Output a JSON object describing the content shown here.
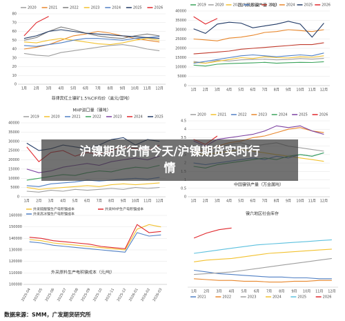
{
  "banner": "沪镍期货行情今天/沪镍期货实时行情",
  "source": "数据来源：SMM，广发期货研究所",
  "chart_data": [
    {
      "type": "line",
      "title": "菲律宾红土镍矿1.5%CIF均价（美元/湿吨）",
      "legend": "top",
      "categories": [
        "1月",
        "2月",
        "3月",
        "4月",
        "5月",
        "6月",
        "7月",
        "8月",
        "9月",
        "10月",
        "11月",
        "12月"
      ],
      "ylim": [
        0,
        80
      ],
      "yticks": [
        0,
        10,
        20,
        30,
        40,
        50,
        60,
        70,
        80
      ],
      "series": [
        {
          "name": "2020",
          "color": "#9e9e9e",
          "values": [
            35,
            33,
            32,
            36,
            38,
            40,
            42,
            44,
            45,
            43,
            40,
            38
          ]
        },
        {
          "name": "2021",
          "color": "#e8862a",
          "values": [
            40,
            42,
            45,
            50,
            55,
            57,
            60,
            58,
            55,
            52,
            50,
            48
          ]
        },
        {
          "name": "2022",
          "color": "#7a7a7a",
          "values": [
            50,
            53,
            60,
            65,
            62,
            58,
            55,
            53,
            52,
            55,
            57,
            55
          ]
        },
        {
          "name": "2023",
          "color": "#f2c12e",
          "values": [
            48,
            47,
            50,
            52,
            50,
            48,
            46,
            45,
            47,
            50,
            52,
            50
          ]
        },
        {
          "name": "2024",
          "color": "#4f7fc4",
          "values": [
            44,
            43,
            45,
            47,
            50,
            52,
            52,
            51,
            50,
            52,
            53,
            54
          ]
        },
        {
          "name": "2025",
          "color": "#1f3864",
          "values": [
            52,
            55,
            60,
            62,
            60,
            58,
            57,
            56,
            55,
            54,
            53,
            52
          ]
        },
        {
          "name": "2026",
          "color": "#e0262b",
          "values": [
            55,
            70,
            77,
            null,
            null,
            null,
            null,
            null,
            null,
            null,
            null,
            null
          ]
        }
      ]
    },
    {
      "type": "line",
      "title": "国内精炼镍产量（吨）",
      "legend": "top",
      "categories": [
        "1月",
        "2月",
        "3月",
        "4月",
        "5月",
        "6月",
        "7月",
        "8月",
        "9月",
        "10月",
        "11月",
        "12月"
      ],
      "ylim": [
        0,
        40000
      ],
      "yticks": [
        0,
        5000,
        10000,
        15000,
        20000,
        25000,
        30000,
        35000,
        40000
      ],
      "series": [
        {
          "name": "2019",
          "color": "#3aa35a",
          "values": [
            11000,
            10500,
            11500,
            11800,
            12000,
            12200,
            12500,
            12000,
            12300,
            12500,
            12400,
            12800
          ]
        },
        {
          "name": "2020",
          "color": "#9e9e9e",
          "values": [
            13000,
            12000,
            13500,
            13200,
            13800,
            14000,
            14200,
            13800,
            14000,
            14500,
            14200,
            14600
          ]
        },
        {
          "name": "2021",
          "color": "#f2c12e",
          "values": [
            12500,
            12000,
            13000,
            14000,
            15000,
            14500,
            15500,
            15000,
            14800,
            15500,
            15200,
            16000
          ]
        },
        {
          "name": "2022",
          "color": "#4f7fc4",
          "values": [
            12000,
            13000,
            14000,
            15000,
            16000,
            16500,
            16000,
            15500,
            16000,
            16500,
            16000,
            17500
          ]
        },
        {
          "name": "2023",
          "color": "#c0392b",
          "values": [
            17000,
            17500,
            18000,
            18500,
            19500,
            20000,
            20500,
            21000,
            21500,
            22000,
            22000,
            23000
          ]
        },
        {
          "name": "2024",
          "color": "#e8862a",
          "values": [
            25000,
            24500,
            24000,
            25500,
            26000,
            27000,
            28500,
            29000,
            30000,
            29500,
            29000,
            30000
          ]
        },
        {
          "name": "2025",
          "color": "#1f3864",
          "values": [
            30500,
            28000,
            33000,
            34000,
            33500,
            31000,
            32000,
            33000,
            34500,
            33000,
            26000,
            33500
          ]
        },
        {
          "name": "2026",
          "color": "#e0262b",
          "values": [
            37000,
            33000,
            36000,
            null,
            null,
            null,
            null,
            null,
            null,
            null,
            null,
            null
          ]
        }
      ]
    },
    {
      "type": "line",
      "title": "MHP进口量（镍吨）",
      "legend": "top",
      "categories": [
        "1月",
        "2月",
        "3月",
        "4月",
        "5月",
        "6月",
        "7月",
        "8月",
        "9月",
        "10月",
        "11月",
        "12月"
      ],
      "ylim": [
        0,
        40000
      ],
      "yticks": [
        0,
        5000,
        10000,
        15000,
        20000,
        25000,
        30000,
        35000,
        40000
      ],
      "series": [
        {
          "name": "2019",
          "color": "#9e9e9e",
          "values": [
            3000,
            2500,
            3500,
            3000,
            4000,
            3500,
            4000,
            4500,
            4000,
            5000,
            4500,
            5000
          ]
        },
        {
          "name": "2020",
          "color": "#f2c12e",
          "values": [
            5000,
            4000,
            4500,
            5000,
            5500,
            6000,
            5500,
            6500,
            7000,
            6500,
            7000,
            7500
          ]
        },
        {
          "name": "2021",
          "color": "#4f7fc4",
          "values": [
            6000,
            5500,
            7000,
            7500,
            8000,
            9000,
            8500,
            9000,
            9500,
            10000,
            9500,
            10500
          ]
        },
        {
          "name": "2022",
          "color": "#3aa35a",
          "values": [
            9000,
            10000,
            11000,
            12000,
            11500,
            13000,
            14000,
            13500,
            15000,
            16000,
            15500,
            17000
          ]
        },
        {
          "name": "2023",
          "color": "#7b3fa0",
          "values": [
            15000,
            13000,
            14000,
            16000,
            17000,
            18000,
            17000,
            19000,
            20000,
            21000,
            20000,
            22000
          ]
        },
        {
          "name": "2024",
          "color": "#e0262b",
          "values": [
            27000,
            19000,
            24000,
            25000,
            22000,
            24000,
            23000,
            25000,
            27000,
            26000,
            25000,
            28000
          ]
        },
        {
          "name": "2025",
          "color": "#1f3864",
          "values": [
            29000,
            25000,
            26000,
            28000,
            27000,
            26000,
            28000,
            31000,
            32000,
            28000,
            31000,
            30000
          ]
        }
      ]
    },
    {
      "type": "line",
      "title": "中国镍铁产量（万金属吨）",
      "legend": "top",
      "categories": [
        "1月",
        "2月",
        "3月",
        "4月",
        "5月",
        "6月",
        "7月",
        "8月",
        "9月",
        "10月",
        "11月",
        "12月"
      ],
      "ylim": [
        0,
        4.5
      ],
      "yticks": [
        0,
        0.5,
        1,
        1.5,
        2,
        2.5,
        3,
        3.5,
        4,
        4.5
      ],
      "series": [
        {
          "name": "2020",
          "color": "#9e9e9e",
          "values": [
            3.0,
            2.8,
            2.9,
            3.1,
            3.2,
            3.0,
            3.1,
            3.2,
            3.0,
            2.9,
            2.8,
            2.7
          ]
        },
        {
          "name": "2021",
          "color": "#f2c12e",
          "values": [
            2.6,
            2.5,
            2.6,
            2.7,
            2.8,
            2.7,
            2.6,
            2.5,
            2.4,
            2.3,
            2.2,
            2.1
          ]
        },
        {
          "name": "2022",
          "color": "#4f7fc4",
          "values": [
            2.0,
            1.9,
            2.0,
            2.1,
            2.2,
            2.3,
            2.2,
            2.4,
            2.3,
            2.5,
            2.4,
            2.6
          ]
        },
        {
          "name": "2023",
          "color": "#e8862a",
          "values": [
            2.8,
            2.7,
            3.0,
            3.2,
            3.3,
            3.5,
            3.6,
            3.8,
            4.0,
            4.1,
            3.9,
            3.8
          ]
        },
        {
          "name": "2024",
          "color": "#3aa35a",
          "values": [
            1.8,
            1.7,
            1.9,
            2.0,
            2.1,
            2.2,
            2.3,
            2.2,
            2.4,
            2.5,
            2.4,
            2.6
          ]
        },
        {
          "name": "2025",
          "color": "#7b3fa0",
          "values": [
            3.3,
            3.0,
            3.4,
            3.5,
            3.6,
            3.7,
            3.9,
            4.2,
            4.1,
            4.2,
            3.9,
            3.7
          ]
        },
        {
          "name": "2026",
          "color": "#e0262b",
          "values": [
            3.4,
            3.1,
            3.6,
            null,
            null,
            null,
            null,
            null,
            null,
            null,
            null,
            null
          ]
        }
      ]
    },
    {
      "type": "line",
      "title": "外采原料生产电积镍成本（元/吨）",
      "legend": "top",
      "categories": [
        "2025-04",
        "2025-05",
        "2025-06",
        "2025-07",
        "2025-08",
        "2025-09",
        "2025-10",
        "2025-11",
        "2025-12",
        "2026-01",
        "2026-02",
        "2026-03"
      ],
      "ylim": [
        100000,
        160000
      ],
      "yticks": [
        100000,
        110000,
        120000,
        130000,
        140000,
        150000,
        160000
      ],
      "series": [
        {
          "name": "外采硫酸镍生产电积镍成本",
          "color": "#f2c12e",
          "values": [
            139000,
            138000,
            136000,
            135000,
            134000,
            133000,
            132000,
            131000,
            130000,
            148000,
            152000,
            150000
          ]
        },
        {
          "name": "外采MHP生产电积镍成本",
          "color": "#e0262b",
          "values": [
            141000,
            140000,
            138000,
            137000,
            136000,
            135000,
            133000,
            132000,
            131000,
            152000,
            145000,
            146000
          ]
        },
        {
          "name": "外采高冰镍生产电积镍成本",
          "color": "#4f7fc4",
          "values": [
            137000,
            136000,
            134000,
            133000,
            132000,
            131000,
            130000,
            129000,
            128000,
            145000,
            142000,
            143000
          ]
        }
      ]
    },
    {
      "type": "line",
      "title": "镍六地区社会库存",
      "legend": "bottom",
      "categories": [
        "1月",
        "2月",
        "3月",
        "4月",
        "5月",
        "6月",
        "7月",
        "8月",
        "9月",
        "10月",
        "11月",
        "12月"
      ],
      "ylim": [
        0,
        80
      ],
      "series": [
        {
          "name": "2021",
          "color": "#4f7fc4",
          "values": [
            20,
            18,
            16,
            15,
            14,
            13,
            12,
            12,
            11,
            11,
            10,
            10
          ]
        },
        {
          "name": "2022",
          "color": "#e8862a",
          "values": [
            10,
            9,
            8,
            8,
            7,
            7,
            6,
            6,
            7,
            7,
            8,
            8
          ]
        },
        {
          "name": "2023",
          "color": "#9e9e9e",
          "values": [
            15,
            16,
            17,
            18,
            20,
            22,
            24,
            26,
            28,
            30,
            32,
            34
          ]
        },
        {
          "name": "2024",
          "color": "#f2c12e",
          "values": [
            30,
            32,
            33,
            34,
            36,
            38,
            40,
            41,
            42,
            43,
            44,
            45
          ]
        },
        {
          "name": "2025",
          "color": "#5bc0de",
          "values": [
            40,
            42,
            44,
            46,
            48,
            50,
            51,
            52,
            53,
            54,
            55,
            56
          ]
        },
        {
          "name": "2026",
          "color": "#e0262b",
          "values": [
            58,
            64,
            68,
            70,
            null,
            null,
            null,
            null,
            null,
            null,
            null,
            null
          ]
        }
      ]
    }
  ]
}
